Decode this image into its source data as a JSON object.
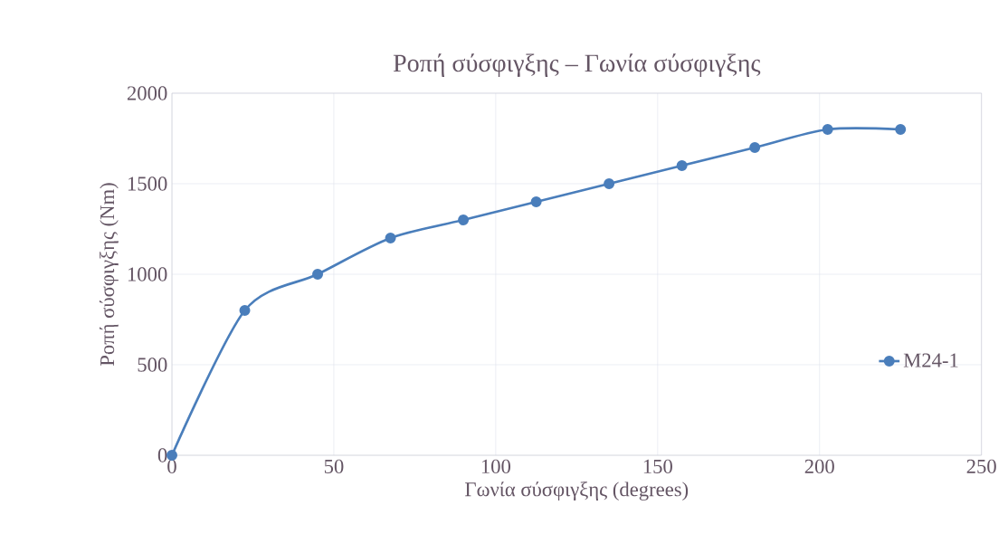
{
  "chart_data": {
    "type": "line",
    "title": "Ροπή σύσφιγξης – Γωνία σύσφιγξης",
    "xlabel": "Γωνία σύσφιγξης (degrees)",
    "ylabel": "Ροπή σύσφιγξης (Nm)",
    "x": [
      0,
      22.5,
      45,
      67.5,
      90,
      112.5,
      135,
      157.5,
      180,
      202.5,
      225
    ],
    "series": [
      {
        "name": "M24-1",
        "color": "#4a7ebb",
        "values": [
          0,
          800,
          1000,
          1200,
          1300,
          1400,
          1500,
          1600,
          1700,
          1800,
          1800
        ]
      }
    ],
    "xlim": [
      0,
      250
    ],
    "xticks": [
      0,
      50,
      100,
      150,
      200,
      250
    ],
    "ylim": [
      0,
      2000
    ],
    "yticks": [
      0,
      500,
      1000,
      1500,
      2000
    ],
    "grid": true,
    "legend": "right",
    "marker": "circle",
    "line_style": "solid"
  }
}
